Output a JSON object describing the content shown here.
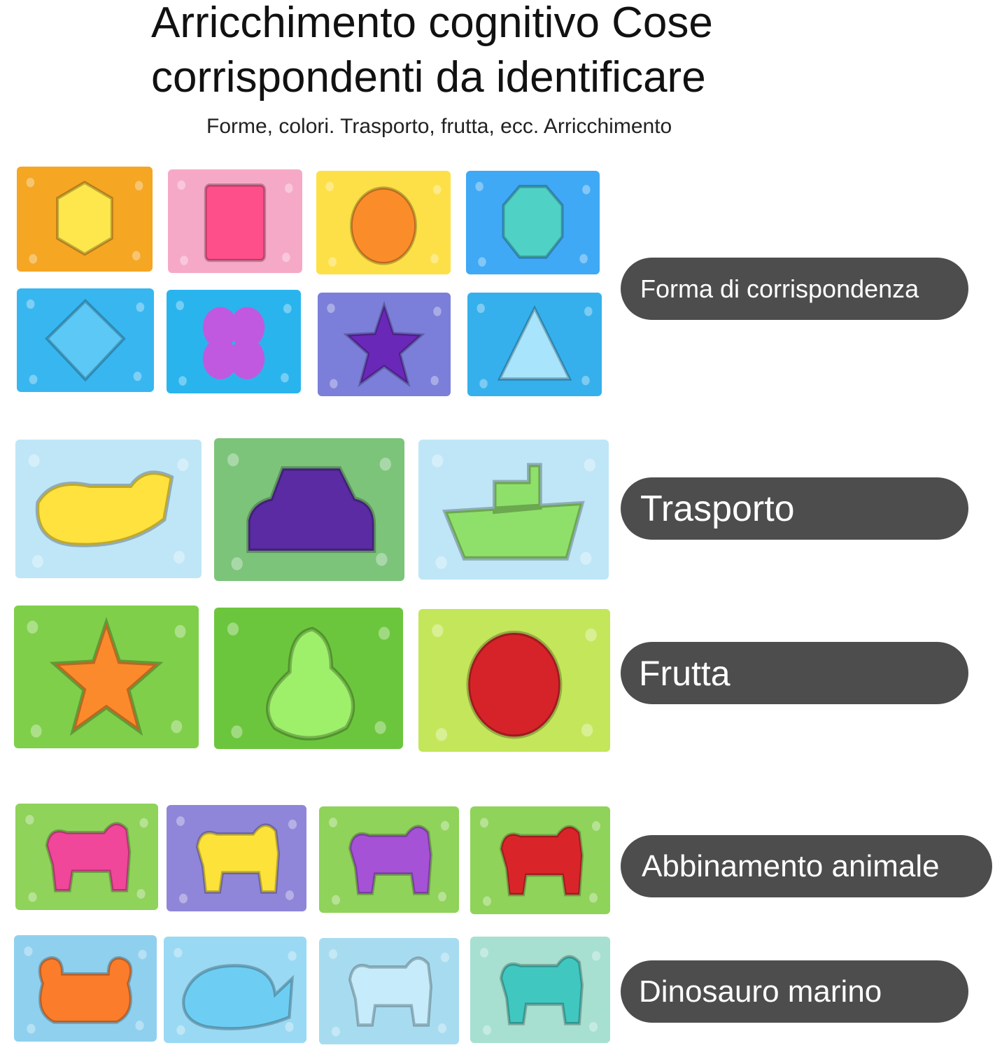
{
  "header": {
    "title_line1": "Arricchimento cognitivo Cose",
    "title_line2": "corrispondenti da identificare",
    "subtitle": "Forme, colori. Trasporto, frutta, ecc. Arricchimento"
  },
  "labels": {
    "shapes": "Forma di corrispondenza",
    "transport": "Trasporto",
    "fruit": "Frutta",
    "animals": "Abbinamento animale",
    "sea_dino": "Dinosauro marino"
  },
  "puzzles": {
    "shapes": [
      {
        "bg": "#f5a623",
        "piece": "#fde74c",
        "shape": "hexagon"
      },
      {
        "bg": "#f6a9c6",
        "piece": "#ff4f8b",
        "shape": "square"
      },
      {
        "bg": "#fde047",
        "piece": "#fb8c2a",
        "shape": "circle"
      },
      {
        "bg": "#3fa9f5",
        "piece": "#4fd1c5",
        "shape": "octagon"
      },
      {
        "bg": "#38b6f0",
        "piece": "#5bc8f5",
        "shape": "diamond"
      },
      {
        "bg": "#2ab4ee",
        "piece": "#c059e0",
        "shape": "flower"
      },
      {
        "bg": "#7b7fd9",
        "piece": "#6a28b8",
        "shape": "star"
      },
      {
        "bg": "#35b0ec",
        "piece": "#a8e4fb",
        "shape": "triangle"
      }
    ],
    "transport": [
      {
        "bg": "#bfe6f7",
        "piece": "#ffe23d",
        "shape": "plane"
      },
      {
        "bg": "#7cc47a",
        "piece": "#5a2ba3",
        "shape": "car"
      },
      {
        "bg": "#bfe6f7",
        "piece": "#8fe06a",
        "shape": "boat"
      }
    ],
    "fruit": [
      {
        "bg": "#7fcf4a",
        "piece": "#fb8a2c",
        "shape": "star"
      },
      {
        "bg": "#6cc63d",
        "piece": "#9ef06a",
        "shape": "pear"
      },
      {
        "bg": "#c4e65a",
        "piece": "#d6232a",
        "shape": "circle"
      }
    ],
    "animals": [
      {
        "bg": "#8fd35a",
        "piece": "#f0479a",
        "shape": "animal"
      },
      {
        "bg": "#8f86d9",
        "piece": "#fde23a",
        "shape": "animal"
      },
      {
        "bg": "#8fd35a",
        "piece": "#a552d6",
        "shape": "animal"
      },
      {
        "bg": "#8fd35a",
        "piece": "#d9252a",
        "shape": "animal"
      }
    ],
    "sea_dino": [
      {
        "bg": "#8fd0ef",
        "piece": "#fb7c2a",
        "shape": "crab"
      },
      {
        "bg": "#9ad9f3",
        "piece": "#6ecdf2",
        "shape": "whale"
      },
      {
        "bg": "#a7dcf0",
        "piece": "#c6ecfb",
        "shape": "animal"
      },
      {
        "bg": "#a7e0d0",
        "piece": "#40c7c0",
        "shape": "animal"
      }
    ]
  }
}
